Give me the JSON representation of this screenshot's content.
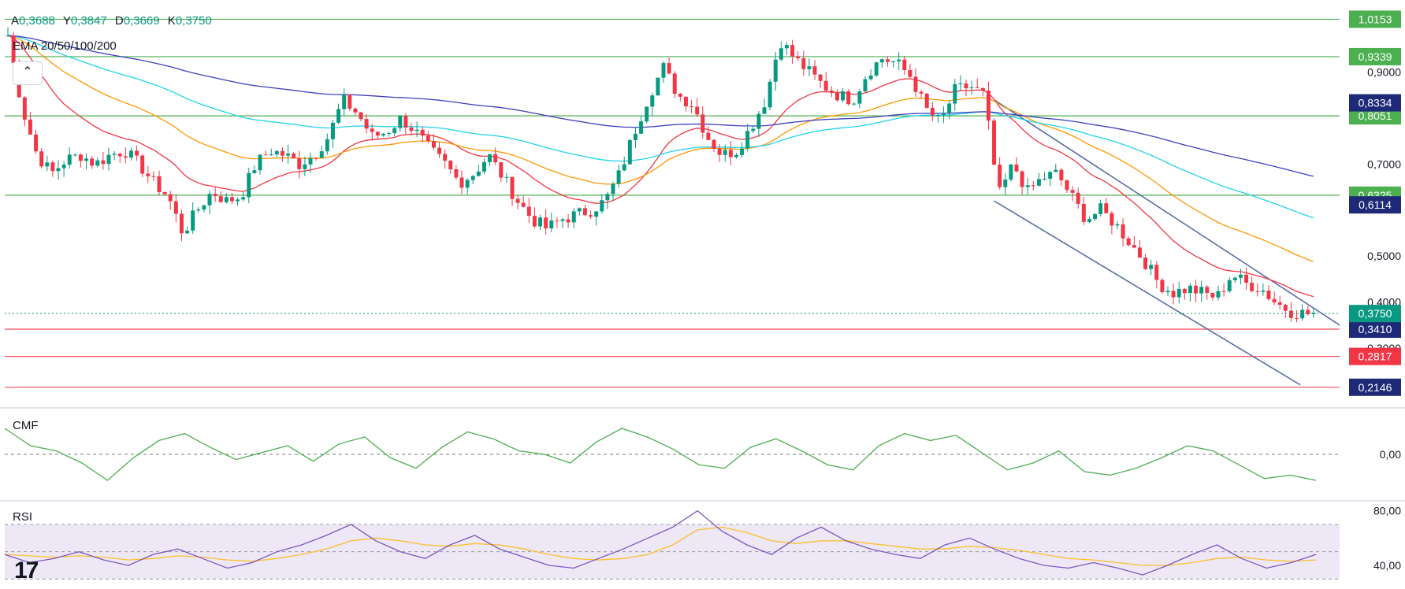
{
  "header": {
    "ohlc": [
      {
        "key": "A",
        "value": "0,3688"
      },
      {
        "key": "Y",
        "value": "0,3847"
      },
      {
        "key": "D",
        "value": "0,3669"
      },
      {
        "key": "K",
        "value": "0,3750"
      }
    ],
    "indicator_label": "EMA 20/50/100/200",
    "collapse_icon": "chevron-up-icon"
  },
  "panes": {
    "cmf_label": "CMF",
    "rsi_label": "RSI",
    "logo_text": "17"
  },
  "chart_data": {
    "type": "candlestick",
    "y_axis_ticks": [
      "0,9000",
      "0,7000",
      "0,5000",
      "0,4000",
      "0,3000"
    ],
    "ylim": [
      0.18,
      1.04
    ],
    "candles_close_approx": [
      0.98,
      0.82,
      0.72,
      0.68,
      0.71,
      0.72,
      0.7,
      0.72,
      0.73,
      0.7,
      0.66,
      0.63,
      0.55,
      0.6,
      0.64,
      0.62,
      0.63,
      0.7,
      0.73,
      0.72,
      0.7,
      0.72,
      0.76,
      0.84,
      0.81,
      0.76,
      0.77,
      0.8,
      0.77,
      0.73,
      0.7,
      0.66,
      0.68,
      0.72,
      0.67,
      0.62,
      0.58,
      0.56,
      0.58,
      0.59,
      0.6,
      0.62,
      0.68,
      0.77,
      0.85,
      0.91,
      0.85,
      0.83,
      0.76,
      0.72,
      0.73,
      0.78,
      0.84,
      0.97,
      0.93,
      0.9,
      0.87,
      0.85,
      0.84,
      0.9,
      0.93,
      0.92,
      0.89,
      0.82,
      0.79,
      0.86,
      0.87,
      0.85,
      0.63,
      0.7,
      0.64,
      0.67,
      0.68,
      0.63,
      0.58,
      0.6,
      0.57,
      0.53,
      0.49,
      0.44,
      0.42,
      0.43,
      0.42,
      0.41,
      0.46,
      0.44,
      0.43,
      0.4,
      0.38,
      0.375
    ],
    "horizontal_levels": [
      {
        "value": 1.0153,
        "label": "1,0153",
        "kind": "resistance"
      },
      {
        "value": 0.9339,
        "label": "0,9339",
        "kind": "resistance"
      },
      {
        "value": 0.8051,
        "label": "0,8051",
        "kind": "resistance"
      },
      {
        "value": 0.6325,
        "label": "0,6325",
        "kind": "resistance"
      },
      {
        "value": 0.341,
        "label": "0,3410",
        "kind": "support"
      },
      {
        "value": 0.2817,
        "label": "0,2817",
        "kind": "support"
      },
      {
        "value": 0.2146,
        "label": "0,2146",
        "kind": "support"
      }
    ],
    "ema_badges": [
      {
        "label": "0,8334",
        "color": "#1e2a78"
      },
      {
        "label": "0,6114",
        "color": "#1e2a78"
      }
    ],
    "last_price": {
      "value": 0.375,
      "label": "0,3750",
      "color": "#089981"
    },
    "ema_series": [
      {
        "name": "EMA 20",
        "color": "#f23645"
      },
      {
        "name": "EMA 50",
        "color": "#ff9800"
      },
      {
        "name": "EMA 100",
        "color": "#22d3ee"
      },
      {
        "name": "EMA 200",
        "color": "#3f3fbf"
      }
    ],
    "cmf": {
      "ticks": [
        "0,00"
      ],
      "zero_line": 0.0,
      "color": "#4caf50",
      "values_approx": [
        0.15,
        0.05,
        0.02,
        -0.05,
        -0.15,
        -0.02,
        0.08,
        0.12,
        0.04,
        -0.03,
        0.01,
        0.05,
        -0.04,
        0.06,
        0.1,
        -0.02,
        -0.08,
        0.04,
        0.13,
        0.09,
        0.02,
        0.0,
        -0.05,
        0.07,
        0.15,
        0.1,
        0.03,
        -0.06,
        -0.08,
        0.04,
        0.09,
        0.02,
        -0.06,
        -0.09,
        0.05,
        0.12,
        0.08,
        0.11,
        0.01,
        -0.09,
        -0.05,
        0.02,
        -0.1,
        -0.12,
        -0.08,
        -0.02,
        0.05,
        0.02,
        -0.06,
        -0.14,
        -0.12,
        -0.15
      ]
    },
    "rsi": {
      "ticks": [
        "80,00",
        "40,00"
      ],
      "band": [
        30,
        70
      ],
      "mid": 50,
      "ylim": [
        25,
        85
      ],
      "rsi_color": "#7e57c2",
      "ma_color": "#fbc02d",
      "rsi_values_approx": [
        48,
        42,
        45,
        50,
        44,
        40,
        48,
        52,
        45,
        38,
        42,
        50,
        55,
        62,
        70,
        58,
        50,
        45,
        55,
        62,
        52,
        46,
        40,
        38,
        45,
        52,
        60,
        68,
        80,
        65,
        55,
        48,
        60,
        68,
        58,
        52,
        48,
        45,
        55,
        60,
        52,
        45,
        40,
        38,
        42,
        38,
        33,
        40,
        48,
        55,
        45,
        38,
        42,
        48
      ],
      "ma_values_approx": [
        48,
        47,
        46,
        47,
        46,
        44,
        45,
        47,
        46,
        44,
        43,
        45,
        48,
        52,
        58,
        60,
        58,
        55,
        54,
        56,
        55,
        52,
        48,
        45,
        44,
        45,
        48,
        55,
        66,
        68,
        64,
        58,
        56,
        58,
        58,
        56,
        54,
        52,
        52,
        54,
        53,
        51,
        48,
        45,
        44,
        42,
        40,
        40,
        42,
        45,
        46,
        44,
        43,
        44
      ]
    }
  }
}
